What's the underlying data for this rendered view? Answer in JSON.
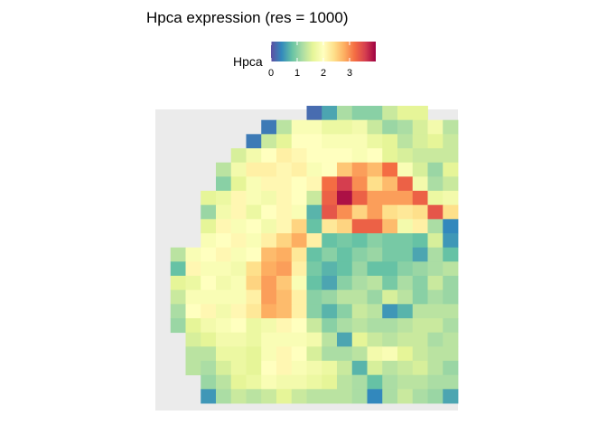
{
  "chart_data": {
    "type": "heatmap",
    "title": "Hpca expression (res = 1000)",
    "xlabel": "",
    "ylabel": "",
    "legend": {
      "title": "Hpca",
      "ticks": [
        0,
        1,
        2,
        3
      ],
      "range": [
        0,
        4
      ],
      "colors": [
        "#5E4FA2",
        "#3288BD",
        "#66C2A5",
        "#ABDDA4",
        "#E6F598",
        "#FFFFBF",
        "#FEE08B",
        "#FDAE61",
        "#F46D43",
        "#D53E4F",
        "#9E0142"
      ]
    },
    "panel_background": "#EBEBEB",
    "grid": {
      "cols": 20,
      "rows": 21,
      "note_values": "Hpca expression per spot (rows top to bottom, columns left to right; null = no spot)",
      "values": [
        [
          null,
          null,
          null,
          null,
          null,
          null,
          null,
          null,
          null,
          null,
          0.2,
          0.6,
          1.2,
          1.0,
          1.0,
          1.4,
          1.6,
          1.6,
          null,
          null
        ],
        [
          null,
          null,
          null,
          null,
          null,
          null,
          null,
          0.3,
          1.3,
          1.9,
          1.9,
          1.7,
          1.7,
          1.8,
          1.4,
          1.1,
          1.2,
          1.5,
          1.8,
          1.3
        ],
        [
          null,
          null,
          null,
          null,
          null,
          null,
          0.3,
          1.4,
          1.6,
          2.0,
          2.0,
          1.9,
          1.9,
          1.9,
          1.7,
          1.6,
          1.3,
          1.5,
          1.6,
          1.4
        ],
        [
          null,
          null,
          null,
          null,
          null,
          1.5,
          1.8,
          2.0,
          2.2,
          2.1,
          2.0,
          2.0,
          2.0,
          1.9,
          2.0,
          1.6,
          1.5,
          1.4,
          1.4,
          1.4
        ],
        [
          null,
          null,
          null,
          null,
          1.3,
          1.8,
          2.2,
          2.2,
          2.1,
          2.2,
          1.9,
          2.0,
          2.6,
          2.9,
          2.7,
          3.2,
          1.9,
          1.5,
          1.1,
          1.6
        ],
        [
          null,
          null,
          null,
          null,
          1.0,
          1.6,
          1.9,
          2.1,
          2.1,
          2.0,
          2.1,
          3.2,
          3.6,
          3.0,
          2.4,
          2.7,
          3.3,
          1.8,
          1.2,
          1.4
        ],
        [
          null,
          null,
          null,
          1.6,
          1.7,
          2.1,
          1.9,
          1.8,
          2.1,
          2.0,
          1.4,
          3.3,
          3.9,
          3.3,
          2.9,
          2.9,
          2.9,
          3.3,
          1.7,
          1.8
        ],
        [
          null,
          null,
          null,
          1.1,
          1.8,
          2.1,
          1.7,
          2.0,
          2.1,
          1.9,
          0.7,
          3.4,
          3.0,
          2.5,
          2.9,
          2.4,
          2.3,
          2.4,
          3.4,
          2.4
        ],
        [
          null,
          null,
          null,
          1.6,
          2.1,
          1.9,
          2.0,
          1.8,
          2.1,
          2.5,
          0.8,
          2.3,
          2.5,
          3.3,
          3.3,
          2.7,
          1.8,
          2.2,
          1.2,
          0.4
        ],
        [
          null,
          null,
          null,
          1.9,
          2.0,
          2.1,
          1.9,
          2.2,
          2.5,
          2.8,
          2.2,
          0.8,
          0.9,
          0.8,
          1.0,
          0.9,
          0.9,
          0.8,
          1.5,
          0.5
        ],
        [
          null,
          1.3,
          1.9,
          2.0,
          2.1,
          1.9,
          2.0,
          2.7,
          2.8,
          2.3,
          0.8,
          1.0,
          0.8,
          1.0,
          1.1,
          0.9,
          0.9,
          0.6,
          1.2,
          0.8
        ],
        [
          null,
          0.8,
          2.1,
          1.9,
          1.9,
          1.8,
          2.4,
          2.8,
          2.9,
          2.2,
          0.9,
          0.7,
          0.8,
          1.1,
          0.8,
          0.8,
          1.0,
          1.1,
          1.2,
          1.3
        ],
        [
          null,
          1.6,
          1.7,
          2.0,
          1.8,
          1.9,
          2.5,
          2.9,
          2.6,
          1.9,
          0.8,
          0.6,
          1.0,
          1.2,
          1.3,
          0.9,
          1.2,
          1.0,
          1.4,
          1.1
        ],
        [
          null,
          1.4,
          1.9,
          1.9,
          1.9,
          1.9,
          2.2,
          2.9,
          2.7,
          2.2,
          1.0,
          1.1,
          1.3,
          1.3,
          1.1,
          1.5,
          1.3,
          1.0,
          1.2,
          1.1
        ],
        [
          null,
          1.2,
          2.0,
          2.1,
          1.8,
          2.1,
          2.3,
          2.8,
          2.7,
          2.2,
          1.0,
          0.7,
          1.0,
          1.4,
          1.3,
          0.5,
          0.7,
          1.3,
          1.3,
          1.3
        ],
        [
          null,
          1.1,
          1.6,
          1.8,
          1.9,
          2.0,
          1.7,
          1.8,
          2.1,
          2.0,
          1.4,
          1.0,
          1.2,
          1.3,
          1.2,
          1.2,
          1.3,
          1.4,
          1.4,
          1.2
        ],
        [
          null,
          null,
          1.5,
          1.6,
          1.8,
          1.8,
          1.7,
          1.9,
          1.9,
          1.9,
          1.8,
          1.3,
          0.6,
          1.6,
          1.4,
          1.3,
          1.4,
          1.4,
          1.2,
          1.3
        ],
        [
          null,
          null,
          1.3,
          1.3,
          1.7,
          1.7,
          1.6,
          1.9,
          2.1,
          2.0,
          1.5,
          1.2,
          1.2,
          1.3,
          1.8,
          1.9,
          1.6,
          1.4,
          1.3,
          1.3
        ],
        [
          null,
          null,
          1.3,
          1.2,
          1.5,
          1.7,
          1.6,
          2.0,
          2.1,
          1.9,
          1.8,
          1.7,
          1.4,
          0.7,
          1.5,
          1.3,
          1.4,
          1.5,
          1.3,
          1.1
        ],
        [
          null,
          null,
          null,
          1.1,
          1.3,
          1.6,
          1.7,
          1.9,
          1.8,
          1.8,
          1.7,
          1.6,
          1.3,
          1.2,
          0.8,
          1.2,
          1.3,
          1.3,
          1.2,
          1.2
        ],
        [
          null,
          null,
          null,
          0.5,
          1.2,
          1.4,
          1.3,
          1.4,
          1.6,
          1.4,
          1.3,
          1.3,
          1.3,
          1.2,
          0.4,
          1.2,
          1.4,
          1.2,
          1.1,
          0.6
        ]
      ]
    }
  }
}
